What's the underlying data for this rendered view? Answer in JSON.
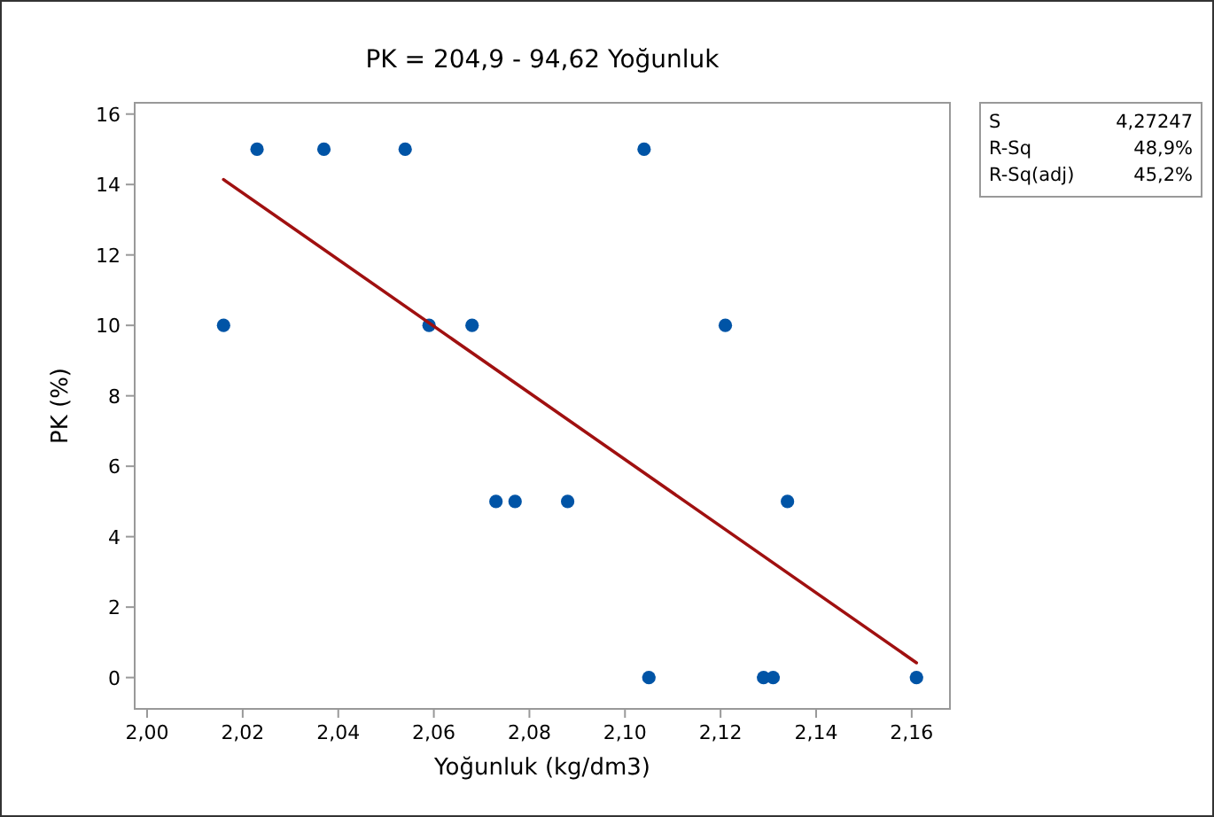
{
  "chart_data": {
    "type": "scatter",
    "title": "PK = 204,9 - 94,62 Yoğunluk",
    "xlabel": "Yoğunluk (kg/dm3)",
    "ylabel": "PK (%)",
    "series": [
      {
        "color": "#0054a6",
        "marker": "circle",
        "x": [
          2.016,
          2.023,
          2.037,
          2.054,
          2.059,
          2.068,
          2.073,
          2.077,
          2.088,
          2.104,
          2.105,
          2.121,
          2.129,
          2.131,
          2.134,
          2.161
        ],
        "values": [
          10,
          15,
          15,
          15,
          10,
          10,
          5,
          5,
          5,
          15,
          0,
          10,
          0,
          0,
          5,
          0
        ]
      },
      {
        "type": "line",
        "color": "#a01010",
        "x": [
          2.016,
          2.161
        ],
        "values": [
          14.14,
          0.42
        ]
      }
    ],
    "xlim": [
      1.9974,
      2.168
    ],
    "ylim": [
      -0.89,
      16.32
    ],
    "xticks": [
      {
        "value": 2.0,
        "label": "2,00"
      },
      {
        "value": 2.02,
        "label": "2,02"
      },
      {
        "value": 2.04,
        "label": "2,04"
      },
      {
        "value": 2.06,
        "label": "2,06"
      },
      {
        "value": 2.08,
        "label": "2,08"
      },
      {
        "value": 2.1,
        "label": "2,10"
      },
      {
        "value": 2.12,
        "label": "2,12"
      },
      {
        "value": 2.14,
        "label": "2,14"
      },
      {
        "value": 2.16,
        "label": "2,16"
      }
    ],
    "yticks": [
      0,
      2,
      4,
      6,
      8,
      10,
      12,
      14,
      16
    ],
    "annotations": [
      "S 4,27247",
      "R-Sq 48,9%",
      "R-Sq(adj) 45,2%"
    ]
  }
}
